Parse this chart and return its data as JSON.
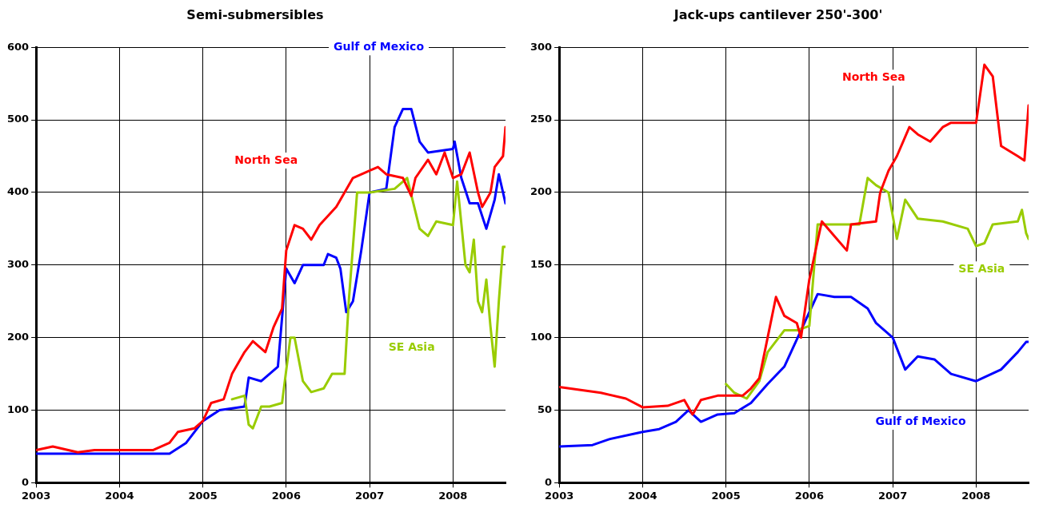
{
  "chart_data": [
    {
      "type": "line",
      "title": "Semi-submersibles",
      "xlim": [
        2003,
        2008.63
      ],
      "xticks": [
        2003,
        2004,
        2005,
        2006,
        2007,
        2008
      ],
      "ylim": [
        0,
        600
      ],
      "yticks": [
        0,
        100,
        200,
        300,
        400,
        500,
        600
      ],
      "grid": true,
      "legend": false,
      "marker": "none",
      "line_style": "solid",
      "series": [
        {
          "name": "North Sea",
          "color": "#ff0000",
          "x": [
            2003,
            2003.2,
            2003.5,
            2003.7,
            2004.4,
            2004.6,
            2004.7,
            2004.9,
            2005,
            2005.1,
            2005.25,
            2005.35,
            2005.5,
            2005.6,
            2005.75,
            2005.85,
            2005.95,
            2006,
            2006.1,
            2006.2,
            2006.3,
            2006.4,
            2006.6,
            2006.8,
            2007,
            2007.1,
            2007.2,
            2007.4,
            2007.5,
            2007.55,
            2007.7,
            2007.8,
            2007.9,
            2008,
            2008.1,
            2008.2,
            2008.3,
            2008.35,
            2008.45,
            2008.5,
            2008.6,
            2008.63
          ],
          "values": [
            45,
            50,
            42,
            45,
            45,
            55,
            70,
            75,
            85,
            110,
            115,
            150,
            180,
            195,
            180,
            215,
            240,
            320,
            355,
            350,
            335,
            355,
            380,
            420,
            430,
            435,
            425,
            420,
            395,
            420,
            445,
            425,
            455,
            420,
            425,
            455,
            400,
            380,
            400,
            435,
            450,
            490
          ]
        },
        {
          "name": "SE Asia",
          "color": "#99cc00",
          "x": [
            2005.35,
            2005.5,
            2005.55,
            2005.6,
            2005.7,
            2005.8,
            2005.95,
            2006.05,
            2006.1,
            2006.2,
            2006.3,
            2006.45,
            2006.55,
            2006.7,
            2006.75,
            2006.85,
            2007,
            2007.3,
            2007.45,
            2007.6,
            2007.7,
            2007.8,
            2008,
            2008.05,
            2008.15,
            2008.2,
            2008.25,
            2008.3,
            2008.35,
            2008.4,
            2008.45,
            2008.5,
            2008.55,
            2008.6,
            2008.63
          ],
          "values": [
            115,
            120,
            80,
            75,
            105,
            105,
            110,
            200,
            200,
            140,
            125,
            130,
            150,
            150,
            250,
            400,
            400,
            405,
            420,
            350,
            340,
            360,
            355,
            415,
            300,
            290,
            335,
            250,
            235,
            280,
            215,
            160,
            250,
            325,
            325
          ]
        },
        {
          "name": "Gulf of Mexico",
          "color": "#0000ff",
          "x": [
            2003,
            2004.6,
            2004.8,
            2005,
            2005.2,
            2005.5,
            2005.55,
            2005.7,
            2005.9,
            2006,
            2006.1,
            2006.2,
            2006.45,
            2006.5,
            2006.6,
            2006.65,
            2006.72,
            2006.8,
            2006.9,
            2007,
            2007.2,
            2007.3,
            2007.4,
            2007.5,
            2007.6,
            2007.7,
            2008,
            2008.02,
            2008.1,
            2008.2,
            2008.3,
            2008.4,
            2008.5,
            2008.55,
            2008.6,
            2008.63
          ],
          "values": [
            40,
            40,
            55,
            85,
            100,
            105,
            145,
            140,
            160,
            295,
            275,
            300,
            300,
            315,
            310,
            295,
            235,
            250,
            320,
            400,
            405,
            490,
            515,
            515,
            470,
            455,
            460,
            470,
            420,
            385,
            385,
            350,
            390,
            425,
            400,
            385
          ]
        }
      ]
    },
    {
      "type": "line",
      "title": "Jack-ups cantilever 250'-300'",
      "xlim": [
        2003,
        2008.63
      ],
      "xticks": [
        2003,
        2004,
        2005,
        2006,
        2007,
        2008
      ],
      "ylim": [
        0,
        300
      ],
      "yticks": [
        0,
        50,
        100,
        150,
        200,
        250,
        300
      ],
      "grid": true,
      "legend": false,
      "marker": "none",
      "line_style": "solid",
      "series": [
        {
          "name": "North Sea",
          "color": "#ff0000",
          "x": [
            2003,
            2003.5,
            2003.8,
            2004,
            2004.3,
            2004.5,
            2004.6,
            2004.7,
            2004.9,
            2005.2,
            2005.3,
            2005.4,
            2005.5,
            2005.6,
            2005.7,
            2005.85,
            2005.9,
            2006,
            2006.15,
            2006.3,
            2006.45,
            2006.5,
            2006.8,
            2006.85,
            2006.95,
            2007.05,
            2007.2,
            2007.3,
            2007.45,
            2007.6,
            2007.7,
            2008,
            2008.1,
            2008.2,
            2008.3,
            2008.5,
            2008.58,
            2008.63
          ],
          "values": [
            66,
            62,
            58,
            52,
            53,
            57,
            47,
            57,
            60,
            60,
            65,
            72,
            100,
            128,
            115,
            110,
            100,
            140,
            180,
            170,
            160,
            178,
            180,
            200,
            215,
            225,
            245,
            240,
            235,
            245,
            248,
            248,
            288,
            280,
            232,
            225,
            222,
            260
          ]
        },
        {
          "name": "SE Asia",
          "color": "#99cc00",
          "x": [
            2005,
            2005.1,
            2005.25,
            2005.4,
            2005.5,
            2005.7,
            2005.85,
            2006,
            2006.1,
            2006.6,
            2006.7,
            2006.8,
            2006.95,
            2007.05,
            2007.15,
            2007.3,
            2007.6,
            2007.9,
            2008,
            2008.1,
            2008.2,
            2008.5,
            2008.55,
            2008.6,
            2008.63
          ],
          "values": [
            68,
            62,
            58,
            70,
            90,
            105,
            105,
            108,
            178,
            178,
            210,
            205,
            200,
            168,
            195,
            182,
            180,
            175,
            163,
            165,
            178,
            180,
            188,
            172,
            168
          ]
        },
        {
          "name": "Gulf of Mexico",
          "color": "#0000ff",
          "x": [
            2003,
            2003.4,
            2003.6,
            2004,
            2004.2,
            2004.4,
            2004.55,
            2004.7,
            2004.9,
            2005.1,
            2005.3,
            2005.5,
            2005.7,
            2005.9,
            2006.1,
            2006.3,
            2006.5,
            2006.7,
            2006.8,
            2007,
            2007.15,
            2007.3,
            2007.5,
            2007.7,
            2008,
            2008.3,
            2008.5,
            2008.6,
            2008.63
          ],
          "values": [
            25,
            26,
            30,
            35,
            37,
            42,
            50,
            42,
            47,
            48,
            55,
            68,
            80,
            105,
            130,
            128,
            128,
            120,
            110,
            100,
            78,
            87,
            85,
            75,
            70,
            78,
            90,
            97,
            97
          ]
        }
      ]
    }
  ]
}
